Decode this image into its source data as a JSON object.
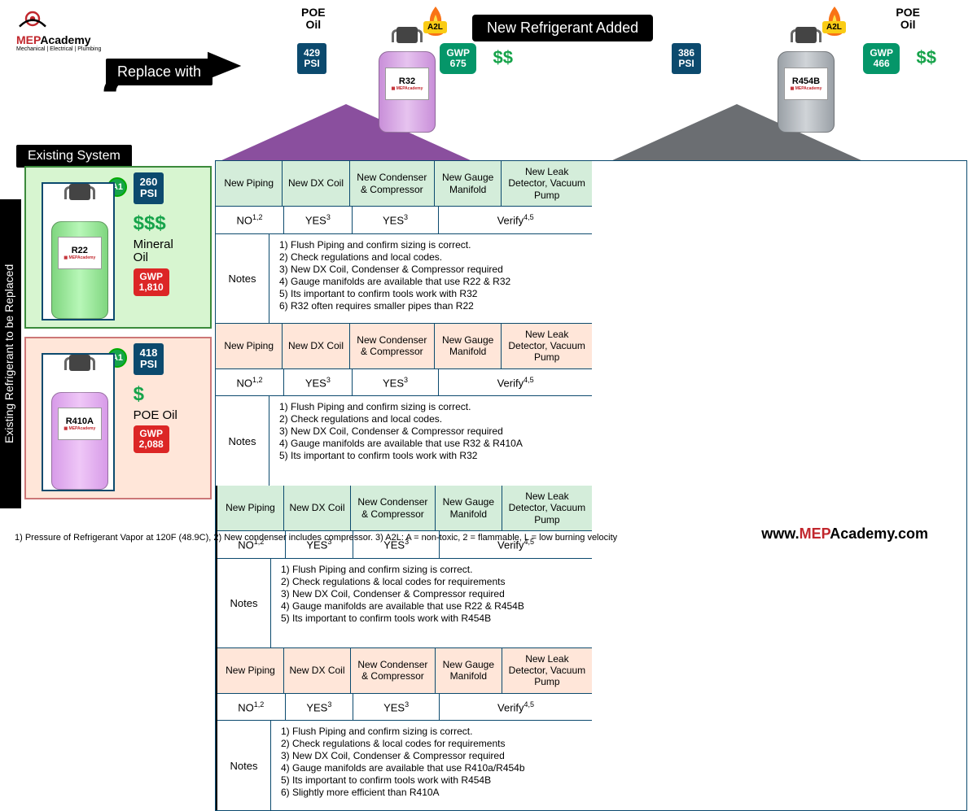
{
  "logo": {
    "brand1": "MEP",
    "brand2": "Academy",
    "sub": "Mechanical | Electrical | Plumbing"
  },
  "labels": {
    "replace_with": "Replace with",
    "new_ref_added": "New Refrigerant Added",
    "existing_system": "Existing System",
    "side": "Existing Refrigerant to be Replaced",
    "notes": "Notes"
  },
  "colors": {
    "r32_body": "#c98fd9",
    "r454b_body": "#9aa0a6",
    "r22_body": "#7fd67f",
    "r410a_body": "#d79be8",
    "tri_left": "#8a4f9e",
    "tri_right": "#6b6e72"
  },
  "new_refs": {
    "r32": {
      "name": "R32",
      "oil": "POE\nOil",
      "psi": "429\nPSI",
      "gwp": "GWP\n675",
      "cost": "$$",
      "a2l": "A2L"
    },
    "r454b": {
      "name": "R454B",
      "oil": "POE\nOil",
      "psi": "386\nPSI",
      "gwp": "GWP\n466",
      "cost": "$$",
      "a2l": "A2L"
    }
  },
  "existing": {
    "r22": {
      "name": "R22",
      "psi": "260\nPSI",
      "cost": "$$$",
      "oil": "Mineral\nOil",
      "gwp": "GWP\n1,810",
      "class": "A1"
    },
    "r410a": {
      "name": "R410A",
      "psi": "418\nPSI",
      "cost": "$",
      "oil": "POE Oil",
      "gwp": "GWP\n2,088",
      "class": "A1"
    }
  },
  "headers": {
    "c1": "New Piping",
    "c2": "New DX Coil",
    "c3": "New Condenser & Compressor",
    "c4": "New Gauge Manifold",
    "c5": "New Leak Detector, Vacuum Pump"
  },
  "answers": {
    "no": "NO",
    "no_sup": "1,2",
    "yes": "YES",
    "yes_sup": "3",
    "verify": "Verify",
    "verify_sup": "4,5"
  },
  "notes": {
    "r22_r32": [
      "1)   Flush Piping and confirm sizing is correct.",
      "2)   Check regulations and local codes.",
      "3)   New DX Coil, Condenser & Compressor required",
      "4)   Gauge manifolds are available that use R22 & R32",
      "5)   Its important to confirm tools work with R32",
      "6)   R32 often requires smaller pipes than R22"
    ],
    "r22_r454b": [
      "1)   Flush Piping and confirm sizing is correct.",
      "2)   Check regulations & local codes for requirements",
      "3)   New DX Coil, Condenser & Compressor required",
      "4)   Gauge manifolds are available that use R22 & R454B",
      "5)   Its important to confirm tools work with R454B"
    ],
    "r410a_r32": [
      "1)   Flush Piping and confirm sizing is correct.",
      "2)   Check regulations and local codes.",
      "3)   New DX Coil, Condenser & Compressor required",
      "4)   Gauge manifolds are available that use R32 & R410A",
      "5)   Its important to confirm tools work with R32"
    ],
    "r410a_r454b": [
      "1)     Flush Piping and confirm sizing is correct.",
      "2)     Check regulations & local codes for requirements",
      "3)     New DX Coil, Condenser & Compressor required",
      "4)     Gauge manifolds are available that use R410a/R454b",
      "5)     Its important to confirm tools work with R454B",
      "6)     Slightly more efficient than R410A"
    ]
  },
  "footer": {
    "text": "1) Pressure of Refrigerant Vapor at 120F (48.9C), 2) New condenser includes compressor. 3) A2L: A = non-toxic, 2 = flammable, L = low burning velocity",
    "url_pre": "www.",
    "url_mep": "MEP",
    "url_post": "Academy.com"
  }
}
